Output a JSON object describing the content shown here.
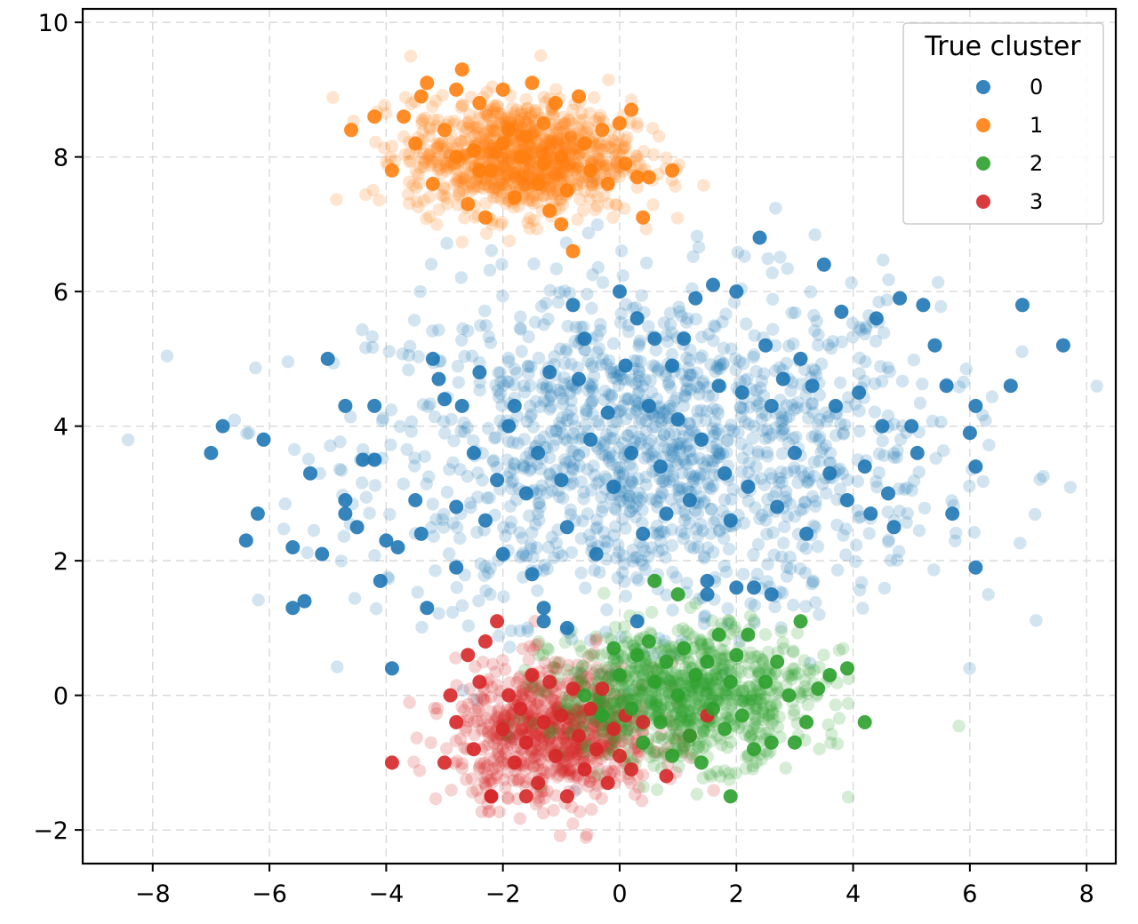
{
  "chart_data": {
    "type": "scatter",
    "title": "",
    "xlabel": "",
    "ylabel": "",
    "xlim": [
      -9.2,
      8.5
    ],
    "ylim": [
      -2.5,
      10.2
    ],
    "x_ticks": [
      -8,
      -6,
      -4,
      -2,
      0,
      2,
      4,
      6,
      8
    ],
    "x_tick_labels": [
      "−8",
      "−6",
      "−4",
      "−2",
      "0",
      "2",
      "4",
      "6",
      "8"
    ],
    "y_ticks": [
      -2,
      0,
      2,
      4,
      6,
      8,
      10
    ],
    "y_tick_labels": [
      "−2",
      "0",
      "2",
      "4",
      "6",
      "8",
      "10"
    ],
    "grid": true,
    "legend": {
      "title": "True cluster",
      "placement": "top-right"
    },
    "series": [
      {
        "name": "0",
        "color": "#1f77b4",
        "center": [
          0.6,
          3.6
        ],
        "spread": [
          2.4,
          1.25
        ],
        "approx_points": 1400,
        "highlighted_points": [
          [
            -7.0,
            3.6
          ],
          [
            -6.8,
            4.0
          ],
          [
            -6.1,
            3.8
          ],
          [
            -6.2,
            2.7
          ],
          [
            -6.4,
            2.3
          ],
          [
            -5.6,
            2.2
          ],
          [
            -5.6,
            1.3
          ],
          [
            -5.4,
            1.4
          ],
          [
            -5.3,
            3.3
          ],
          [
            -5.1,
            2.1
          ],
          [
            -5.0,
            5.0
          ],
          [
            -4.7,
            4.3
          ],
          [
            -4.7,
            2.9
          ],
          [
            -4.7,
            2.7
          ],
          [
            -4.5,
            2.5
          ],
          [
            -4.4,
            3.5
          ],
          [
            -4.2,
            4.3
          ],
          [
            -4.2,
            3.5
          ],
          [
            -4.1,
            1.7
          ],
          [
            -4.0,
            2.3
          ],
          [
            -3.9,
            0.4
          ],
          [
            -3.8,
            2.2
          ],
          [
            -3.5,
            2.9
          ],
          [
            -3.4,
            2.4
          ],
          [
            -3.3,
            1.3
          ],
          [
            -3.2,
            5.0
          ],
          [
            -3.1,
            4.7
          ],
          [
            -3.0,
            4.4
          ],
          [
            -2.8,
            2.8
          ],
          [
            -2.8,
            1.9
          ],
          [
            -2.7,
            4.3
          ],
          [
            -2.5,
            3.6
          ],
          [
            -2.4,
            4.8
          ],
          [
            -2.3,
            2.6
          ],
          [
            -2.1,
            3.2
          ],
          [
            -2.0,
            2.1
          ],
          [
            -1.9,
            4.0
          ],
          [
            -1.8,
            4.3
          ],
          [
            -1.6,
            3.0
          ],
          [
            -1.5,
            1.8
          ],
          [
            -1.4,
            3.6
          ],
          [
            -1.3,
            1.1
          ],
          [
            -1.2,
            4.8
          ],
          [
            -1.0,
            3.2
          ],
          [
            -0.9,
            2.5
          ],
          [
            -0.8,
            5.8
          ],
          [
            -0.7,
            4.7
          ],
          [
            -0.6,
            5.3
          ],
          [
            -0.5,
            3.8
          ],
          [
            -0.4,
            2.1
          ],
          [
            -0.2,
            4.2
          ],
          [
            -0.1,
            3.1
          ],
          [
            0.0,
            6.0
          ],
          [
            0.1,
            4.9
          ],
          [
            0.2,
            3.6
          ],
          [
            0.3,
            5.6
          ],
          [
            0.4,
            2.4
          ],
          [
            0.5,
            4.3
          ],
          [
            0.6,
            5.3
          ],
          [
            0.7,
            3.4
          ],
          [
            0.8,
            2.7
          ],
          [
            0.9,
            4.9
          ],
          [
            1.0,
            4.1
          ],
          [
            1.1,
            5.3
          ],
          [
            1.2,
            2.9
          ],
          [
            1.3,
            5.9
          ],
          [
            1.4,
            3.8
          ],
          [
            1.5,
            1.7
          ],
          [
            1.6,
            6.1
          ],
          [
            1.7,
            4.6
          ],
          [
            1.8,
            3.3
          ],
          [
            1.9,
            2.6
          ],
          [
            2.0,
            6.0
          ],
          [
            2.1,
            4.5
          ],
          [
            2.2,
            3.1
          ],
          [
            2.3,
            1.6
          ],
          [
            2.4,
            6.8
          ],
          [
            2.5,
            5.2
          ],
          [
            2.6,
            4.3
          ],
          [
            2.7,
            2.8
          ],
          [
            2.8,
            4.7
          ],
          [
            3.0,
            3.6
          ],
          [
            3.1,
            5.0
          ],
          [
            3.2,
            2.4
          ],
          [
            3.3,
            4.6
          ],
          [
            3.5,
            6.4
          ],
          [
            3.6,
            3.3
          ],
          [
            3.7,
            4.3
          ],
          [
            3.8,
            5.7
          ],
          [
            3.9,
            2.9
          ],
          [
            4.1,
            4.5
          ],
          [
            4.2,
            3.4
          ],
          [
            4.3,
            2.7
          ],
          [
            4.4,
            5.6
          ],
          [
            4.5,
            4.0
          ],
          [
            4.6,
            3.0
          ],
          [
            4.7,
            2.5
          ],
          [
            4.8,
            5.9
          ],
          [
            5.0,
            4.0
          ],
          [
            5.1,
            3.6
          ],
          [
            5.2,
            5.8
          ],
          [
            5.4,
            5.2
          ],
          [
            5.6,
            4.6
          ],
          [
            5.7,
            2.7
          ],
          [
            6.0,
            3.9
          ],
          [
            6.1,
            4.3
          ],
          [
            6.1,
            3.4
          ],
          [
            6.1,
            1.9
          ],
          [
            6.7,
            4.6
          ],
          [
            6.9,
            5.8
          ],
          [
            7.6,
            5.2
          ],
          [
            -0.9,
            1.0
          ],
          [
            -1.3,
            1.3
          ],
          [
            0.3,
            1.1
          ],
          [
            1.5,
            1.5
          ],
          [
            2.0,
            1.6
          ],
          [
            2.6,
            1.5
          ]
        ]
      },
      {
        "name": "1",
        "color": "#ff7f0e",
        "center": [
          -1.7,
          8.0
        ],
        "spread": [
          0.95,
          0.42
        ],
        "approx_points": 1000,
        "highlighted_points": [
          [
            -4.6,
            8.4
          ],
          [
            -4.2,
            8.6
          ],
          [
            -3.9,
            7.8
          ],
          [
            -3.7,
            8.6
          ],
          [
            -3.5,
            8.2
          ],
          [
            -3.4,
            8.9
          ],
          [
            -3.3,
            9.1
          ],
          [
            -3.2,
            7.6
          ],
          [
            -3.0,
            8.4
          ],
          [
            -2.8,
            9.0
          ],
          [
            -2.7,
            9.3
          ],
          [
            -2.6,
            7.3
          ],
          [
            -2.5,
            8.1
          ],
          [
            -2.4,
            8.8
          ],
          [
            -2.3,
            7.1
          ],
          [
            -2.2,
            7.8
          ],
          [
            -2.0,
            9.0
          ],
          [
            -1.9,
            8.4
          ],
          [
            -1.8,
            7.4
          ],
          [
            -1.7,
            8.0
          ],
          [
            -1.5,
            9.1
          ],
          [
            -1.4,
            7.6
          ],
          [
            -1.3,
            8.5
          ],
          [
            -1.2,
            7.2
          ],
          [
            -1.1,
            8.8
          ],
          [
            -1.0,
            8.0
          ],
          [
            -0.9,
            7.5
          ],
          [
            -0.8,
            6.6
          ],
          [
            -0.7,
            8.9
          ],
          [
            -0.6,
            8.2
          ],
          [
            -0.5,
            7.8
          ],
          [
            -0.3,
            8.4
          ],
          [
            -0.2,
            7.6
          ],
          [
            0.0,
            8.5
          ],
          [
            0.1,
            7.9
          ],
          [
            0.2,
            8.7
          ],
          [
            0.3,
            7.7
          ],
          [
            0.4,
            7.1
          ],
          [
            0.5,
            7.7
          ],
          [
            0.9,
            7.8
          ],
          [
            -2.4,
            7.8
          ],
          [
            -2.0,
            8.2
          ],
          [
            -1.6,
            8.3
          ],
          [
            -1.3,
            7.9
          ],
          [
            -2.8,
            8.0
          ],
          [
            -1.0,
            7.0
          ]
        ]
      },
      {
        "name": "2",
        "color": "#2ca02c",
        "center": [
          1.1,
          0.0
        ],
        "spread": [
          1.1,
          0.5
        ],
        "approx_points": 900,
        "highlighted_points": [
          [
            -0.6,
            0.0
          ],
          [
            -0.3,
            -0.3
          ],
          [
            -0.1,
            0.7
          ],
          [
            0.0,
            0.3
          ],
          [
            0.2,
            -0.2
          ],
          [
            0.3,
            0.6
          ],
          [
            0.4,
            -0.7
          ],
          [
            0.5,
            0.8
          ],
          [
            0.6,
            0.2
          ],
          [
            0.6,
            1.7
          ],
          [
            0.7,
            -0.4
          ],
          [
            0.8,
            0.5
          ],
          [
            0.9,
            -0.9
          ],
          [
            1.0,
            0.0
          ],
          [
            1.0,
            1.5
          ],
          [
            1.1,
            0.7
          ],
          [
            1.2,
            -0.6
          ],
          [
            1.3,
            0.3
          ],
          [
            1.4,
            -1.0
          ],
          [
            1.5,
            0.5
          ],
          [
            1.6,
            -0.2
          ],
          [
            1.7,
            0.9
          ],
          [
            1.8,
            -0.5
          ],
          [
            1.9,
            0.2
          ],
          [
            1.9,
            -1.5
          ],
          [
            2.0,
            0.6
          ],
          [
            2.1,
            -0.3
          ],
          [
            2.2,
            0.9
          ],
          [
            2.3,
            -0.8
          ],
          [
            2.5,
            0.2
          ],
          [
            2.6,
            -0.7
          ],
          [
            2.7,
            0.5
          ],
          [
            2.9,
            0.0
          ],
          [
            3.0,
            -0.7
          ],
          [
            3.1,
            1.1
          ],
          [
            3.2,
            -0.4
          ],
          [
            3.4,
            0.1
          ],
          [
            3.6,
            0.3
          ],
          [
            3.9,
            0.4
          ],
          [
            4.2,
            -0.4
          ]
        ]
      },
      {
        "name": "3",
        "color": "#d62728",
        "center": [
          -1.1,
          -0.55
        ],
        "spread": [
          0.85,
          0.5
        ],
        "approx_points": 800,
        "highlighted_points": [
          [
            -3.9,
            -1.0
          ],
          [
            -3.0,
            -1.0
          ],
          [
            -2.9,
            0.0
          ],
          [
            -2.8,
            -0.4
          ],
          [
            -2.6,
            0.6
          ],
          [
            -2.5,
            -0.8
          ],
          [
            -2.4,
            0.2
          ],
          [
            -2.3,
            0.8
          ],
          [
            -2.2,
            -1.5
          ],
          [
            -2.1,
            1.1
          ],
          [
            -2.0,
            -0.5
          ],
          [
            -1.9,
            0.0
          ],
          [
            -1.8,
            -1.0
          ],
          [
            -1.7,
            -0.2
          ],
          [
            -1.6,
            -0.7
          ],
          [
            -1.5,
            0.3
          ],
          [
            -1.4,
            -1.3
          ],
          [
            -1.3,
            -0.4
          ],
          [
            -1.2,
            0.2
          ],
          [
            -1.1,
            -0.9
          ],
          [
            -1.0,
            -0.3
          ],
          [
            -0.9,
            -1.5
          ],
          [
            -0.8,
            0.1
          ],
          [
            -0.7,
            -0.6
          ],
          [
            -0.6,
            -1.1
          ],
          [
            -0.5,
            -0.2
          ],
          [
            -0.4,
            -0.8
          ],
          [
            -0.3,
            0.1
          ],
          [
            -0.2,
            -1.3
          ],
          [
            -0.1,
            -0.5
          ],
          [
            0.0,
            -0.9
          ],
          [
            0.1,
            -0.3
          ],
          [
            0.2,
            -1.1
          ],
          [
            0.4,
            -0.4
          ],
          [
            0.8,
            -1.2
          ],
          [
            1.2,
            -0.6
          ],
          [
            1.5,
            -0.3
          ],
          [
            -1.6,
            -1.5
          ],
          [
            -2.2,
            -1.5
          ]
        ]
      }
    ]
  }
}
